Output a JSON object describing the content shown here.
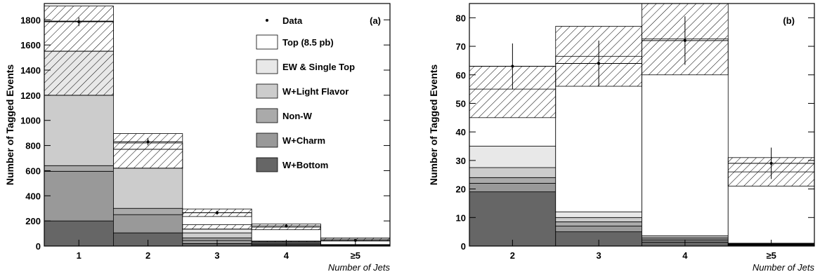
{
  "chart_data": [
    {
      "type": "bar",
      "stacked": true,
      "panel_label": "(a)",
      "xlabel": "Number of Jets",
      "ylabel": "Number of Tagged Events",
      "categories": [
        "1",
        "2",
        "3",
        "4",
        "≥5"
      ],
      "ylim": [
        0,
        1930
      ],
      "yticks": [
        0,
        200,
        400,
        600,
        800,
        1000,
        1200,
        1400,
        1600,
        1800
      ],
      "series": [
        {
          "name": "W+Bottom",
          "color": "#666666",
          "values": [
            200,
            105,
            20,
            8,
            2
          ]
        },
        {
          "name": "W+Charm",
          "color": "#999999",
          "values": [
            395,
            145,
            25,
            8,
            2
          ]
        },
        {
          "name": "Non-W",
          "color": "#aaaaaa",
          "values": [
            45,
            50,
            20,
            5,
            2
          ]
        },
        {
          "name": "W+Light Flavor",
          "color": "#cccccc",
          "values": [
            560,
            320,
            40,
            10,
            3
          ]
        },
        {
          "name": "EW & Single Top",
          "color": "#e8e8e8",
          "values": [
            350,
            0,
            30,
            4,
            1
          ]
        },
        {
          "name": "Top (8.5 pb)",
          "color": "#ffffff",
          "values": [
            240,
            200,
            130,
            115,
            45
          ]
        }
      ],
      "uncertainty_bands": [
        {
          "low": 1200,
          "high": 1550
        },
        {
          "low": 620,
          "high": 770
        },
        {
          "low": 135,
          "high": 170
        },
        {
          "low": 30,
          "high": 40
        },
        {
          "low": 6,
          "high": 12
        },
        {
          "low": 1550,
          "high": 1910
        },
        {
          "low": 770,
          "high": 895
        },
        {
          "low": 235,
          "high": 295
        },
        {
          "low": 130,
          "high": 175
        },
        {
          "low": 40,
          "high": 65
        }
      ],
      "data_points": {
        "y": [
          1785,
          830,
          265,
          160,
          45
        ],
        "err": [
          35,
          28,
          16,
          13,
          7
        ]
      },
      "legend": {
        "data_label": "Data",
        "entries": [
          "Top (8.5 pb)",
          "EW & Single Top",
          "W+Light Flavor",
          "Non-W",
          "W+Charm",
          "W+Bottom"
        ],
        "placement": "top-right"
      }
    },
    {
      "type": "bar",
      "stacked": true,
      "panel_label": "(b)",
      "xlabel": "Number of Jets",
      "ylabel": "Number of Tagged Events",
      "categories": [
        "2",
        "3",
        "4",
        "≥5"
      ],
      "ylim": [
        0,
        85
      ],
      "yticks": [
        0,
        10,
        20,
        30,
        40,
        50,
        60,
        70,
        80
      ],
      "series": [
        {
          "name": "W+Bottom",
          "color": "#666666",
          "values": [
            19,
            5,
            1.4,
            0.3
          ]
        },
        {
          "name": "W+Charm",
          "color": "#999999",
          "values": [
            3,
            2,
            0.6,
            0.2
          ]
        },
        {
          "name": "Non-W",
          "color": "#aaaaaa",
          "values": [
            2,
            1.5,
            0.5,
            0.1
          ]
        },
        {
          "name": "W+Light Flavor",
          "color": "#cccccc",
          "values": [
            3.5,
            1.5,
            0.5,
            0.2
          ]
        },
        {
          "name": "EW & Single Top",
          "color": "#e8e8e8",
          "values": [
            7.5,
            2,
            0.6,
            0.2
          ]
        },
        {
          "name": "Top (8.5 pb)",
          "color": "#ffffff",
          "values": [
            20,
            54.5,
            69,
            25
          ]
        }
      ],
      "uncertainty_bands": [
        {
          "low": 45,
          "high": 63
        },
        {
          "low": 56,
          "high": 77
        },
        {
          "low": 60,
          "high": 85
        },
        {
          "low": 21,
          "high": 31
        }
      ],
      "data_points": {
        "y": [
          63,
          64,
          72,
          29
        ],
        "err": [
          8,
          8,
          8.5,
          5.5
        ]
      }
    }
  ]
}
